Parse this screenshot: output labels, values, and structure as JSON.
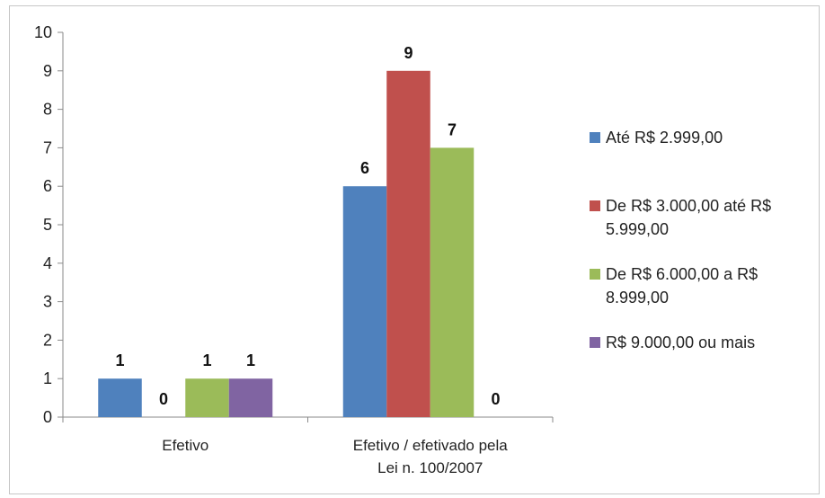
{
  "chart_data": {
    "type": "bar",
    "title": "",
    "xlabel": "",
    "ylabel": "",
    "ylim": [
      0,
      10
    ],
    "yticks": [
      0,
      1,
      2,
      3,
      4,
      5,
      6,
      7,
      8,
      9,
      10
    ],
    "grid": false,
    "legend_position": "right",
    "categories": [
      [
        "Efetivo"
      ],
      [
        "Efetivo / efetivado pela",
        "Lei n. 100/2007"
      ]
    ],
    "series": [
      {
        "name": "Até R$ 2.999,00",
        "legend_lines": [
          "Até R$ 2.999,00"
        ],
        "color": "#4f81bd",
        "values": [
          1,
          6
        ]
      },
      {
        "name": "De R$ 3.000,00 até R$ 5.999,00",
        "legend_lines": [
          "De R$ 3.000,00 até R$",
          "5.999,00"
        ],
        "color": "#c0504d",
        "values": [
          0,
          9
        ]
      },
      {
        "name": "De R$ 6.000,00 a R$ 8.999,00",
        "legend_lines": [
          "De R$ 6.000,00 a R$",
          "8.999,00"
        ],
        "color": "#9bbb59",
        "values": [
          1,
          7
        ]
      },
      {
        "name": "R$ 9.000,00 ou mais",
        "legend_lines": [
          "R$ 9.000,00 ou mais"
        ],
        "color": "#8064a2",
        "values": [
          1,
          0
        ]
      }
    ]
  }
}
